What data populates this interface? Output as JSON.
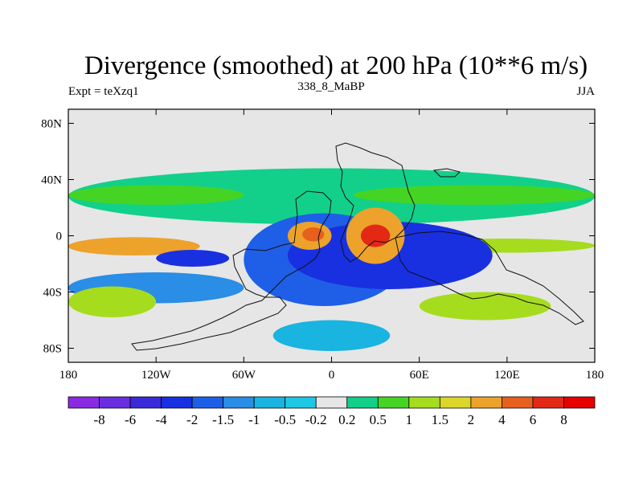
{
  "chart_data": {
    "type": "heatmap",
    "title": "Divergence (smoothed) at 200 hPa (10**6 m/s)",
    "left_string": "Expt = teXzq1",
    "center_string": "338_8_MaBP",
    "right_string": "JJA",
    "x_range": [
      -180,
      180
    ],
    "y_range": [
      -90,
      90
    ],
    "x_ticks": [
      {
        "value": -180,
        "label": "180"
      },
      {
        "value": -120,
        "label": "120W"
      },
      {
        "value": -60,
        "label": "60W"
      },
      {
        "value": 0,
        "label": "0"
      },
      {
        "value": 60,
        "label": "60E"
      },
      {
        "value": 120,
        "label": "120E"
      },
      {
        "value": 180,
        "label": "180"
      }
    ],
    "y_ticks": [
      {
        "value": 80,
        "label": "80N"
      },
      {
        "value": 40,
        "label": "40N"
      },
      {
        "value": 0,
        "label": "0"
      },
      {
        "value": -40,
        "label": "40S"
      },
      {
        "value": -80,
        "label": "80S"
      }
    ],
    "levels": [
      "-8",
      "-6",
      "-4",
      "-2",
      "-1.5",
      "-1",
      "-0.5",
      "-0.2",
      "0.2",
      "0.5",
      "1",
      "1.5",
      "2",
      "4",
      "6",
      "8"
    ],
    "colors": [
      "#8a2be2",
      "#6a2ee0",
      "#3a2adb",
      "#1830e0",
      "#1f5fe8",
      "#2a8de6",
      "#1ab4e0",
      "#1ec8e4",
      "#e6e6e6",
      "#12d08a",
      "#46d424",
      "#a6dc1e",
      "#ddd52a",
      "#eda22c",
      "#e8601e",
      "#e42816",
      "#e60000"
    ],
    "regions": [
      {
        "class": 9,
        "lon": [
          -180,
          180
        ],
        "lat": [
          8,
          48
        ]
      },
      {
        "class": 10,
        "lon": [
          -180,
          -60
        ],
        "lat": [
          22,
          36
        ]
      },
      {
        "class": 10,
        "lon": [
          15,
          180
        ],
        "lat": [
          22,
          36
        ]
      },
      {
        "class": 13,
        "lon": [
          -180,
          -90
        ],
        "lat": [
          -14,
          -1
        ]
      },
      {
        "class": 11,
        "lon": [
          60,
          180
        ],
        "lat": [
          -12,
          -2
        ]
      },
      {
        "class": 4,
        "lon": [
          -60,
          50
        ],
        "lat": [
          -50,
          16
        ]
      },
      {
        "class": 3,
        "lon": [
          -30,
          110
        ],
        "lat": [
          -38,
          10
        ]
      },
      {
        "class": 13,
        "lon": [
          -30,
          0
        ],
        "lat": [
          -10,
          10
        ]
      },
      {
        "class": 14,
        "lon": [
          -20,
          -5
        ],
        "lat": [
          -4,
          6
        ]
      },
      {
        "class": 13,
        "lon": [
          10,
          50
        ],
        "lat": [
          -20,
          20
        ]
      },
      {
        "class": 15,
        "lon": [
          20,
          40
        ],
        "lat": [
          -8,
          8
        ]
      },
      {
        "class": 3,
        "lon": [
          -120,
          -70
        ],
        "lat": [
          -22,
          -10
        ]
      },
      {
        "class": 5,
        "lon": [
          -180,
          -60
        ],
        "lat": [
          -48,
          -26
        ]
      },
      {
        "class": 11,
        "lon": [
          -180,
          -120
        ],
        "lat": [
          -58,
          -36
        ]
      },
      {
        "class": 11,
        "lon": [
          60,
          150
        ],
        "lat": [
          -60,
          -40
        ]
      },
      {
        "class": 6,
        "lon": [
          -40,
          40
        ],
        "lat": [
          -82,
          -60
        ]
      }
    ]
  }
}
